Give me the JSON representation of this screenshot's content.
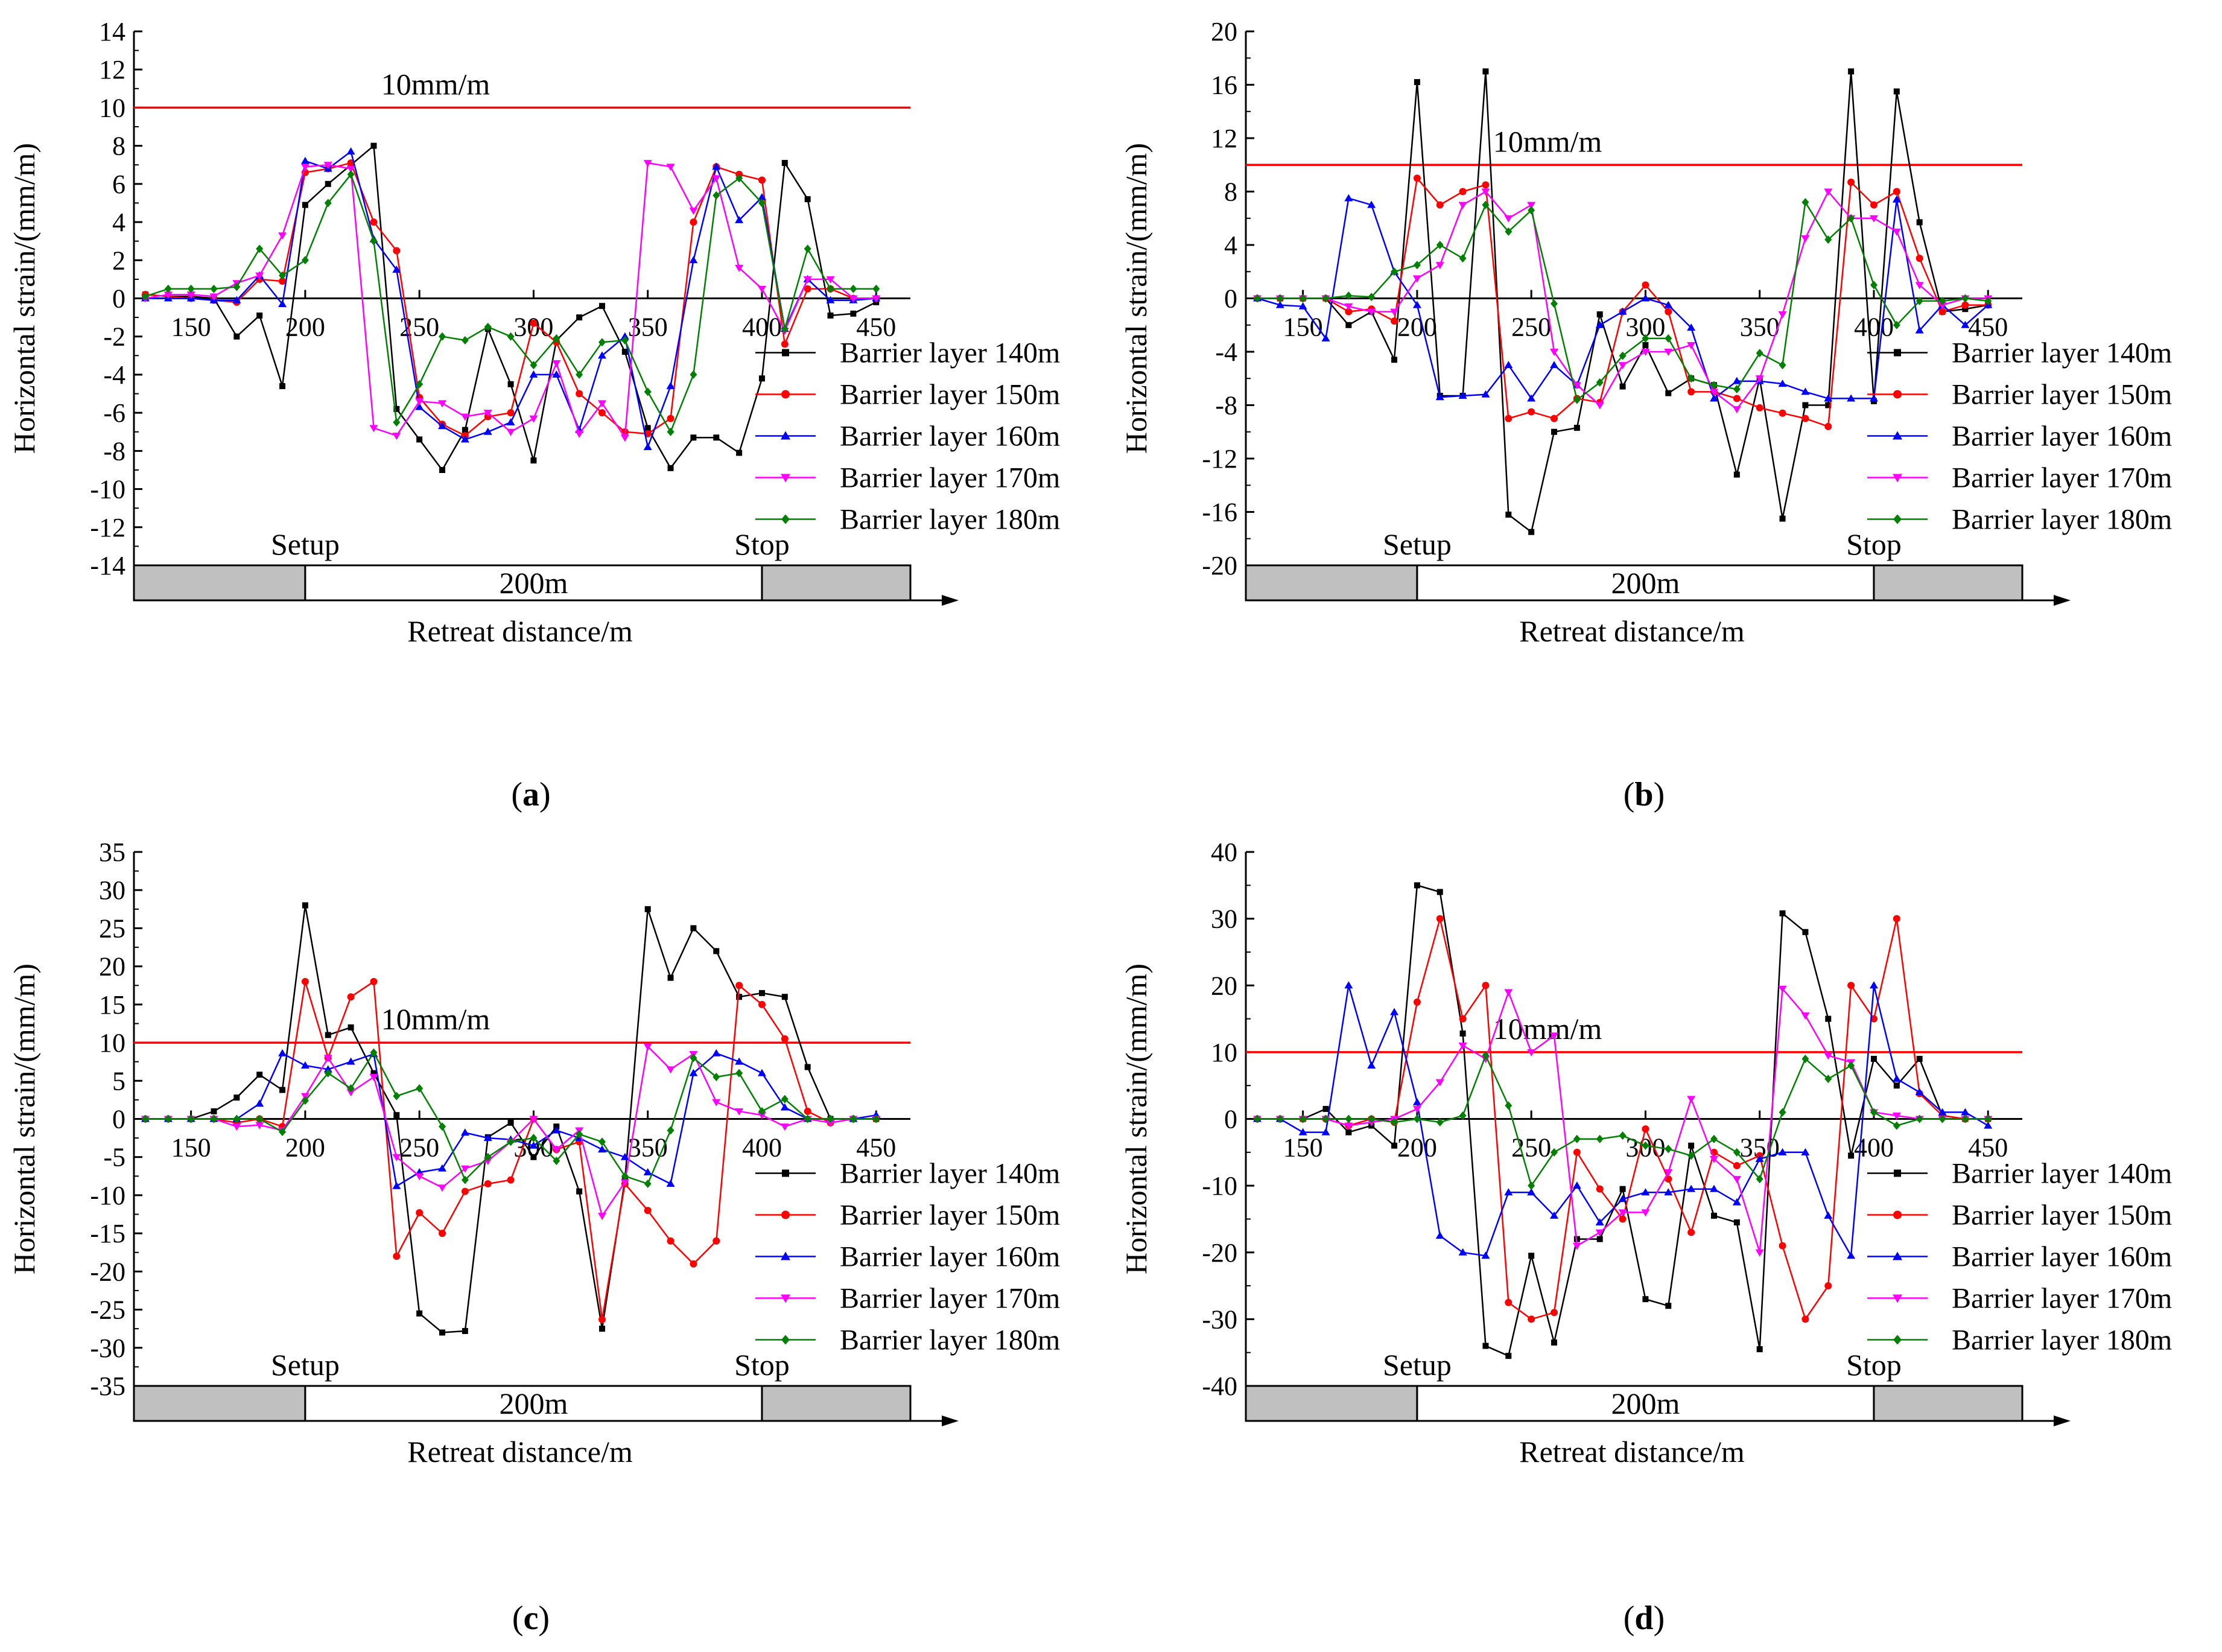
{
  "figure": {
    "x_label": "Retreat distance/m",
    "y_label": "Horizontal strain/(mm/m)",
    "threshold_label": "10mm/m",
    "setup_label": "Setup",
    "stop_label": "Stop",
    "span_label": "200m",
    "legend": [
      "Barrier layer 140m",
      "Barrier layer 150m",
      "Barrier layer 160m",
      "Barrier layer 170m",
      "Barrier layer 180m"
    ],
    "colors": {
      "140m": "#000000",
      "150m": "#ff0000",
      "160m": "#0000ff",
      "170m": "#ff00ff",
      "180m": "#008000",
      "threshold": "#ff0000",
      "bar_fill": "#c0c0c0"
    }
  },
  "captions": [
    "(a)",
    "(b)",
    "(c)",
    "(d)"
  ],
  "chart_data": [
    {
      "panel": "a",
      "type": "line",
      "threshold": 10,
      "xlim": [
        125,
        465
      ],
      "ylim": [
        -14,
        14
      ],
      "yticks_step": 2,
      "xticks": [
        150,
        200,
        250,
        300,
        350,
        400,
        450
      ],
      "x": [
        130,
        140,
        150,
        160,
        170,
        180,
        190,
        200,
        210,
        220,
        230,
        240,
        250,
        260,
        270,
        280,
        290,
        300,
        310,
        320,
        330,
        340,
        350,
        360,
        370,
        380,
        390,
        400,
        410,
        420,
        430,
        440,
        450
      ],
      "series": [
        {
          "name": "Barrier layer 140m",
          "values": [
            0.2,
            0.1,
            0.1,
            0,
            -2,
            -0.9,
            -4.6,
            4.9,
            6,
            7,
            8,
            -5.8,
            -7.4,
            -9,
            -6.9,
            -1.6,
            -4.5,
            -8.5,
            -2.2,
            -1,
            -0.4,
            -2.8,
            -6.8,
            -8.9,
            -7.3,
            -7.3,
            -8.1,
            -4.2,
            7.1,
            5.2,
            -0.9,
            -0.8,
            -0.2
          ]
        },
        {
          "name": "Barrier layer 150m",
          "values": [
            0.2,
            0.1,
            0,
            -0.1,
            -0.2,
            1,
            0.9,
            6.6,
            6.8,
            7.1,
            4,
            2.5,
            -5.2,
            -6.6,
            -7.2,
            -6.2,
            -6,
            -1.3,
            -2.3,
            -5,
            -6,
            -7,
            -7.1,
            -6.3,
            4,
            6.9,
            6.5,
            6.2,
            -2.4,
            0.5,
            0.5,
            0,
            0
          ]
        },
        {
          "name": "Barrier layer 160m",
          "values": [
            0,
            0,
            0,
            -0.1,
            -0.1,
            1.2,
            -0.3,
            7.2,
            6.8,
            7.7,
            3.1,
            1.5,
            -5.7,
            -6.7,
            -7.4,
            -7,
            -6.5,
            -4,
            -4,
            -6.9,
            -3,
            -2,
            -7.8,
            -4.6,
            2,
            6.9,
            4.1,
            5.3,
            -1.6,
            1,
            -0.1,
            -0.1,
            0
          ]
        },
        {
          "name": "Barrier layer 170m",
          "values": [
            0,
            0.2,
            0.2,
            0.1,
            0.8,
            1.2,
            3.3,
            6.9,
            7,
            6.8,
            -6.8,
            -7.2,
            -5.4,
            -5.5,
            -6.2,
            -6,
            -7,
            -6.3,
            -3.4,
            -7.1,
            -5.5,
            -7.3,
            7.1,
            6.9,
            4.6,
            6.3,
            1.6,
            0.5,
            -1.7,
            1,
            1,
            0,
            0
          ]
        },
        {
          "name": "Barrier layer 180m",
          "values": [
            0.1,
            0.5,
            0.5,
            0.5,
            0.6,
            2.6,
            1.2,
            2,
            5,
            6.5,
            3,
            -6.5,
            -4.5,
            -2,
            -2.2,
            -1.5,
            -2,
            -3.5,
            -2.1,
            -4,
            -2.3,
            -2.2,
            -4.9,
            -7,
            -4,
            5.4,
            6.3,
            5,
            -1.6,
            2.6,
            0.5,
            0.5,
            0.5
          ]
        }
      ]
    },
    {
      "panel": "b",
      "type": "line",
      "threshold": 10,
      "xlim": [
        125,
        465
      ],
      "ylim": [
        -20,
        20
      ],
      "yticks_step": 4,
      "xticks": [
        150,
        200,
        250,
        300,
        350,
        400,
        450
      ],
      "x": [
        130,
        140,
        150,
        160,
        170,
        180,
        190,
        200,
        210,
        220,
        230,
        240,
        250,
        260,
        270,
        280,
        290,
        300,
        310,
        320,
        330,
        340,
        350,
        360,
        370,
        380,
        390,
        400,
        410,
        420,
        430,
        440,
        450
      ],
      "series": [
        {
          "name": "Barrier layer 140m",
          "values": [
            0,
            0,
            0,
            0,
            -2,
            -1,
            -4.6,
            16.2,
            -7.3,
            -7.3,
            17,
            -16.2,
            -17.5,
            -10,
            -9.7,
            -1.2,
            -6.6,
            -3.5,
            -7.1,
            -6,
            -6.5,
            -13.2,
            -6,
            -16.5,
            -8,
            -8,
            17,
            -7.7,
            15.5,
            5.7,
            -1,
            -0.8,
            -0.5
          ]
        },
        {
          "name": "Barrier layer 150m",
          "values": [
            0,
            0,
            0,
            0,
            -1,
            -0.8,
            -1.7,
            9,
            7,
            8,
            8.5,
            -9,
            -8.5,
            -9,
            -7.5,
            -7.8,
            -1,
            1,
            -1,
            -7,
            -7,
            -7.5,
            -8.2,
            -8.6,
            -9,
            -9.6,
            8.7,
            7,
            8,
            3,
            -1,
            -0.5,
            -0.5
          ]
        },
        {
          "name": "Barrier layer 160m",
          "values": [
            0,
            -0.5,
            -0.6,
            -3,
            7.5,
            7,
            2,
            -0.5,
            -7.4,
            -7.3,
            -7.2,
            -5,
            -7.5,
            -5,
            -6.5,
            -2,
            -1,
            0,
            -0.5,
            -2.2,
            -7.5,
            -6.2,
            -6.2,
            -6.4,
            -7,
            -7.5,
            -7.5,
            -7.5,
            7.4,
            -2.4,
            -0.5,
            -2,
            -0.5
          ]
        },
        {
          "name": "Barrier layer 170m",
          "values": [
            0,
            0,
            0,
            0,
            -0.6,
            -1,
            -1,
            1.5,
            2.5,
            7,
            8,
            6,
            7,
            -4,
            -6.5,
            -8,
            -5,
            -4,
            -4,
            -3.5,
            -7,
            -8.3,
            -6,
            -1.2,
            4.5,
            8,
            6,
            6,
            5,
            1,
            -0.5,
            0,
            0
          ]
        },
        {
          "name": "Barrier layer 180m",
          "values": [
            0,
            0,
            0,
            0,
            0.2,
            0.1,
            2,
            2.5,
            4,
            3,
            7,
            5,
            6.6,
            -0.4,
            -7.6,
            -6.3,
            -4.3,
            -3,
            -3,
            -6,
            -6.5,
            -6.8,
            -4.1,
            -5,
            7.2,
            4.4,
            6,
            1,
            -2,
            -0.2,
            -0.2,
            0,
            -0.2
          ]
        }
      ]
    },
    {
      "panel": "c",
      "type": "line",
      "threshold": 10,
      "xlim": [
        125,
        465
      ],
      "ylim": [
        -35,
        35
      ],
      "yticks_step": 5,
      "xticks": [
        150,
        200,
        250,
        300,
        350,
        400,
        450
      ],
      "x": [
        130,
        140,
        150,
        160,
        170,
        180,
        190,
        200,
        210,
        220,
        230,
        240,
        250,
        260,
        270,
        280,
        290,
        300,
        310,
        320,
        330,
        340,
        350,
        360,
        370,
        380,
        390,
        400,
        410,
        420,
        430,
        440,
        450
      ],
      "series": [
        {
          "name": "Barrier layer 140m",
          "values": [
            0,
            0,
            0,
            1,
            2.8,
            5.8,
            3.8,
            28,
            11,
            12,
            6,
            0.5,
            -25.5,
            -28,
            -27.8,
            -2.4,
            -0.5,
            -5,
            -1,
            -9.5,
            -27.5,
            -8,
            27.5,
            18.5,
            25,
            22,
            16,
            16.5,
            16,
            6.8,
            0,
            0,
            0
          ]
        },
        {
          "name": "Barrier layer 150m",
          "values": [
            0,
            0,
            0,
            0,
            -0.5,
            0,
            -1,
            18,
            8,
            16,
            18,
            -18,
            -12.3,
            -15,
            -9.5,
            -8.5,
            -8,
            0,
            -4,
            -3,
            -26.3,
            -8.5,
            -12,
            -16,
            -19,
            -16,
            17.5,
            15,
            10.5,
            1,
            -0.5,
            0,
            0
          ]
        },
        {
          "name": "Barrier layer 160m",
          "values": [
            0,
            0,
            0,
            0,
            0,
            2,
            8.6,
            7,
            6.5,
            7.5,
            8.5,
            -8.8,
            -7,
            -6.5,
            -1.8,
            -2.5,
            -2.7,
            -3.5,
            -1.5,
            -2.5,
            -4,
            -5,
            -7,
            -8.5,
            6,
            8.6,
            7.5,
            6,
            1.5,
            0,
            0,
            0,
            0.5
          ]
        },
        {
          "name": "Barrier layer 170m",
          "values": [
            0,
            0,
            0,
            0,
            -1,
            -0.8,
            -1.5,
            3,
            8,
            3.5,
            5.5,
            -5,
            -7.5,
            -9,
            -6.5,
            -5.5,
            -3,
            0,
            -4,
            -1.5,
            -12.7,
            -8.3,
            9.5,
            6.5,
            8.5,
            2.2,
            1,
            0.5,
            -1,
            0,
            -0.5,
            0,
            0
          ]
        },
        {
          "name": "Barrier layer 180m",
          "values": [
            0,
            0,
            0,
            0,
            0,
            0,
            -1.7,
            2.4,
            6,
            4,
            8.7,
            3,
            4,
            -1,
            -8,
            -5,
            -3,
            -2.5,
            -5.5,
            -2,
            -3,
            -7.5,
            -8.5,
            -1.5,
            8,
            5.5,
            6,
            1,
            2.6,
            0,
            0,
            0,
            0
          ]
        }
      ]
    },
    {
      "panel": "d",
      "type": "line",
      "threshold": 10,
      "xlim": [
        125,
        465
      ],
      "ylim": [
        -40,
        40
      ],
      "yticks_step": 10,
      "xticks": [
        150,
        200,
        250,
        300,
        350,
        400,
        450
      ],
      "x": [
        130,
        140,
        150,
        160,
        170,
        180,
        190,
        200,
        210,
        220,
        230,
        240,
        250,
        260,
        270,
        280,
        290,
        300,
        310,
        320,
        330,
        340,
        350,
        360,
        370,
        380,
        390,
        400,
        410,
        420,
        430,
        440,
        450
      ],
      "series": [
        {
          "name": "Barrier layer 140m",
          "values": [
            0,
            0,
            0,
            1.5,
            -2,
            -1,
            -4,
            35,
            34,
            12.8,
            -34,
            -35.5,
            -20.5,
            -33.5,
            -18,
            -18,
            -10.5,
            -27,
            -28,
            -4,
            -14.5,
            -15.5,
            -34.5,
            30.8,
            28,
            15,
            -5.5,
            9,
            5,
            9,
            0.5,
            0,
            0
          ]
        },
        {
          "name": "Barrier layer 150m",
          "values": [
            0,
            0,
            0,
            0,
            -1,
            0,
            -0.5,
            17.5,
            30,
            15,
            20,
            -27.5,
            -30,
            -29,
            -5,
            -10.5,
            -15,
            -1.5,
            -9,
            -17,
            -5,
            -7,
            -5.5,
            -19,
            -30,
            -25,
            20,
            15,
            30,
            3.8,
            0.5,
            0,
            0
          ]
        },
        {
          "name": "Barrier layer 160m",
          "values": [
            0,
            0,
            -2,
            -2,
            20,
            8,
            16,
            2.5,
            -17.5,
            -20,
            -20.5,
            -11,
            -11,
            -14.5,
            -10,
            -15.5,
            -12,
            -11,
            -11,
            -10.5,
            -10.5,
            -12.5,
            -6,
            -5,
            -5,
            -14.5,
            -20.5,
            20,
            6,
            4,
            1,
            1,
            -1
          ]
        },
        {
          "name": "Barrier layer 170m",
          "values": [
            0,
            0,
            0,
            0,
            -1,
            -0.5,
            0,
            1.5,
            5.5,
            11,
            9,
            19,
            10,
            12.5,
            -19,
            -17,
            -14,
            -14,
            -8,
            3,
            -6,
            -9,
            -20,
            19.5,
            15.5,
            9.5,
            8.5,
            1,
            0.5,
            0,
            0,
            0,
            0
          ]
        },
        {
          "name": "Barrier layer 180m",
          "values": [
            0,
            0,
            0,
            0,
            0,
            0,
            -0.5,
            0,
            -0.5,
            0.5,
            9.5,
            2,
            -10,
            -5,
            -3,
            -3,
            -2.5,
            -4,
            -4.5,
            -5.5,
            -3,
            -5,
            -9,
            1,
            9,
            6,
            8,
            1,
            -1,
            0,
            0,
            0,
            0
          ]
        }
      ]
    }
  ]
}
